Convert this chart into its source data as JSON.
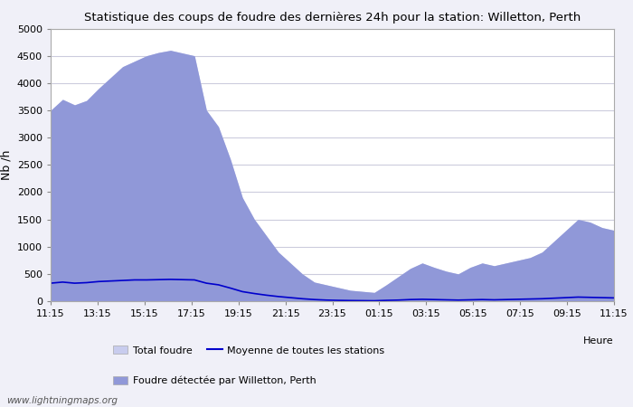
{
  "title": "Statistique des coups de foudre des dernières 24h pour la station: Willetton, Perth",
  "xlabel": "Heure",
  "ylabel": "Nb /h",
  "xlim_labels": [
    "11:15",
    "13:15",
    "15:15",
    "17:15",
    "19:15",
    "21:15",
    "23:15",
    "01:15",
    "03:15",
    "05:15",
    "07:15",
    "09:15",
    "11:15"
  ],
  "ylim": [
    0,
    5000
  ],
  "yticks": [
    0,
    500,
    1000,
    1500,
    2000,
    2500,
    3000,
    3500,
    4000,
    4500,
    5000
  ],
  "background_color": "#f0f0f8",
  "plot_bg_color": "#ffffff",
  "grid_color": "#ccccdd",
  "total_fill_color": "#c8ccee",
  "station_fill_color": "#9098d8",
  "avg_line_color": "#0000cc",
  "watermark": "www.lightningmaps.org",
  "legend_total": "Total foudre",
  "legend_avg": "Moyenne de toutes les stations",
  "legend_station": "Foudre détectée par Willetton, Perth",
  "total_foudre": [
    3500,
    3700,
    3600,
    3680,
    3900,
    4100,
    4300,
    4400,
    4500,
    4560,
    4600,
    4550,
    4500,
    3500,
    3200,
    2600,
    1900,
    1500,
    1200,
    900,
    700,
    500,
    350,
    300,
    250,
    200,
    180,
    160,
    300,
    450,
    600,
    700,
    620,
    550,
    500,
    620,
    700,
    650,
    700,
    750,
    800,
    900,
    1100,
    1300,
    1500,
    1450,
    1350,
    1300
  ],
  "station_foudre": [
    3500,
    3700,
    3600,
    3680,
    3900,
    4100,
    4300,
    4400,
    4500,
    4560,
    4600,
    4550,
    4500,
    3500,
    3200,
    2600,
    1900,
    1500,
    1200,
    900,
    700,
    500,
    350,
    300,
    250,
    200,
    180,
    160,
    300,
    450,
    600,
    700,
    620,
    550,
    500,
    620,
    700,
    650,
    700,
    750,
    800,
    900,
    1100,
    1300,
    1500,
    1450,
    1350,
    1300
  ],
  "avg_line": [
    330,
    350,
    330,
    340,
    360,
    370,
    380,
    390,
    390,
    395,
    400,
    395,
    390,
    330,
    300,
    240,
    175,
    140,
    110,
    85,
    65,
    45,
    30,
    20,
    15,
    12,
    10,
    8,
    15,
    20,
    30,
    35,
    30,
    25,
    20,
    25,
    30,
    25,
    30,
    35,
    40,
    45,
    55,
    65,
    75,
    70,
    65,
    60
  ]
}
